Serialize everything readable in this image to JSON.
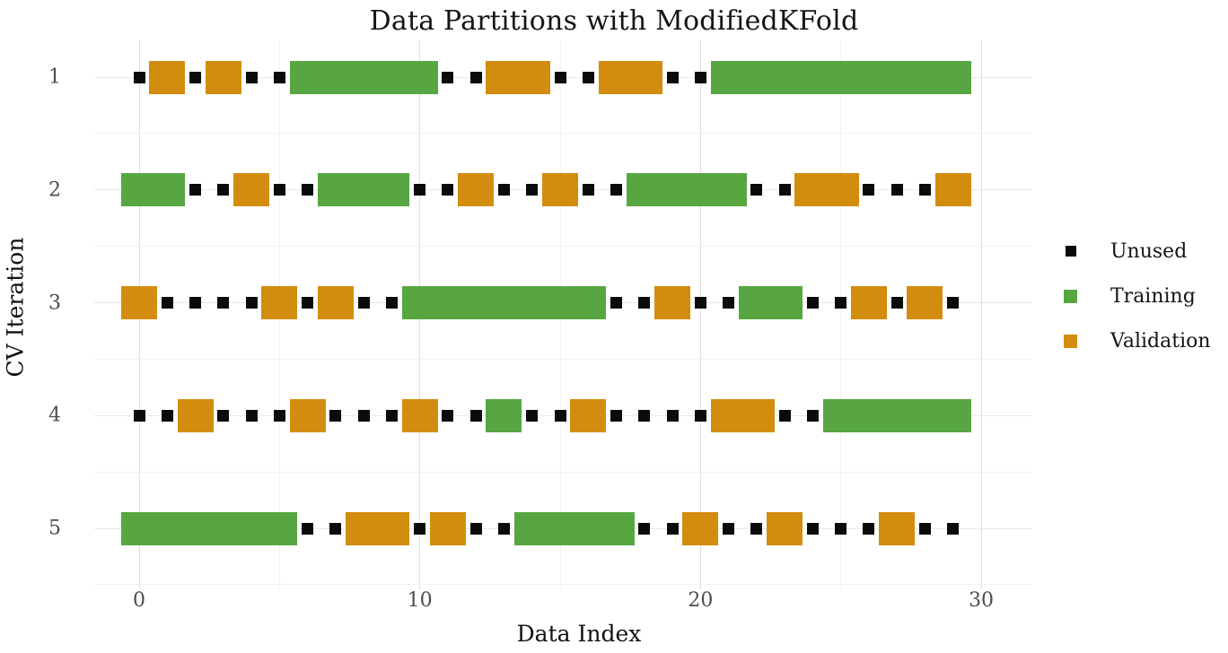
{
  "title": "Data Partitions with ModifiedKFold",
  "x_axis": {
    "label": "Data Index",
    "tick_labels": [
      0,
      10,
      20,
      30
    ],
    "gridline_values": [
      0,
      5,
      10,
      15,
      20,
      25,
      30
    ],
    "range": [
      -1.6,
      31.6
    ]
  },
  "y_axis": {
    "label": "CV Iteration",
    "tick_labels": [
      "1",
      "2",
      "3",
      "4",
      "5"
    ]
  },
  "legend": {
    "position": "right",
    "items": [
      {
        "label": "Unused",
        "key": "U",
        "color": "#0b0b0b",
        "swatch_size": 12
      },
      {
        "label": "Training",
        "key": "T",
        "color": "#58A642",
        "swatch_size": 15
      },
      {
        "label": "Validation",
        "key": "V",
        "color": "#D28D0E",
        "swatch_size": 15
      }
    ]
  },
  "colors": {
    "unused": "#0b0b0b",
    "training": "#58A642",
    "validation": "#D28D0E",
    "grid_major": "#dedede",
    "grid_minor": "#f2f2f2",
    "tick_text": "#4d4d4d"
  },
  "chart_data": {
    "type": "heatmap",
    "description": "Cross-validation partition map: 5 CV iterations (rows) by 30 data indices (columns); each cell is Unused, Training, or Validation",
    "n_points_per_row": 30,
    "x_values": [
      0,
      1,
      2,
      3,
      4,
      5,
      6,
      7,
      8,
      9,
      10,
      11,
      12,
      13,
      14,
      15,
      16,
      17,
      18,
      19,
      20,
      21,
      22,
      23,
      24,
      25,
      26,
      27,
      28,
      29
    ],
    "cell_legend": {
      "U": "Unused",
      "T": "Training",
      "V": "Validation"
    },
    "rows": [
      {
        "iteration": "1",
        "cells": "UVUVUUTTTTTUUVVUUVVUUTTTTTTTTT"
      },
      {
        "iteration": "2",
        "cells": "TTUUVUUTTTUUVUUVUUTTTTUUVVUUUV"
      },
      {
        "iteration": "3",
        "cells": "VUUUUVUVUUTTTTTTTUUVUUTTUUVUVU"
      },
      {
        "iteration": "4",
        "cells": "UUVUUUVUUUVUUTUUVUUUUVVUUTTTTT"
      },
      {
        "iteration": "5",
        "cells": "TTTTTTUUVVUVUUTTTTUUVUUVUUUVUU"
      }
    ],
    "title": "Data Partitions with ModifiedKFold",
    "xlabel": "Data Index",
    "ylabel": "CV Iteration",
    "grid": true,
    "legend_entries": [
      "Unused",
      "Training",
      "Validation"
    ]
  }
}
